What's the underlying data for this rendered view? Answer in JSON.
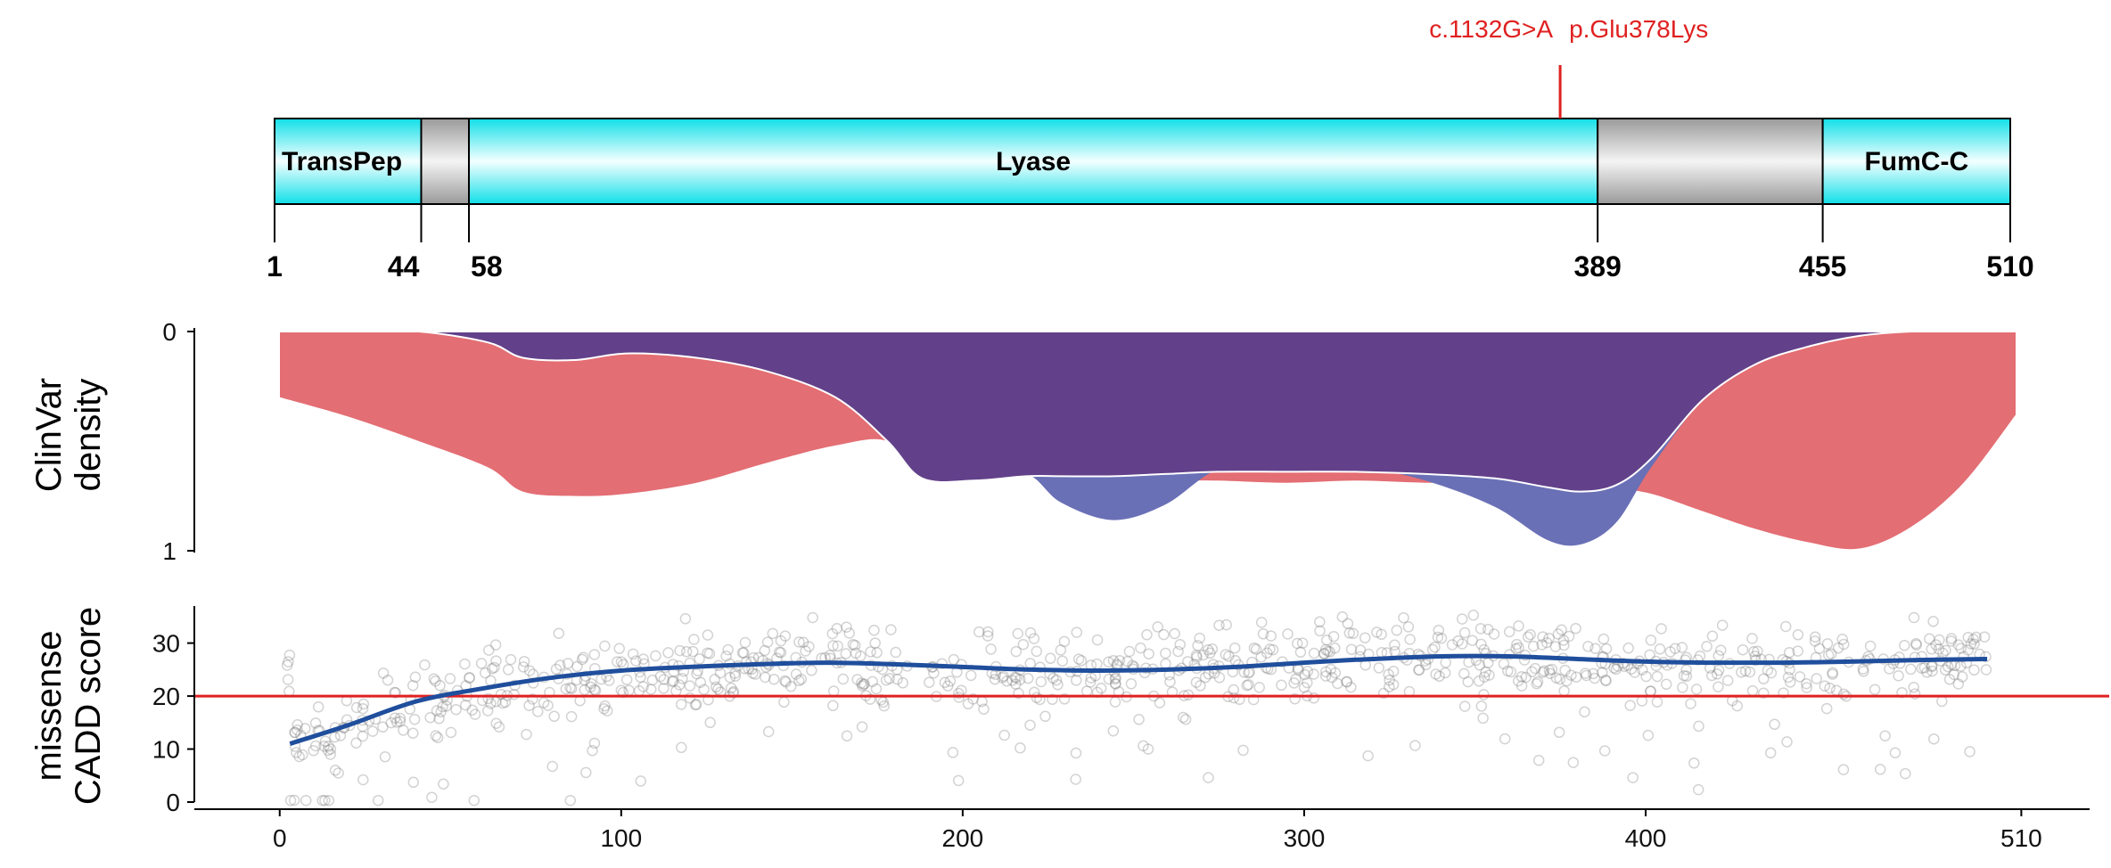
{
  "chart_data": [
    {
      "type": "domain-map",
      "protein_length": 510,
      "variant": {
        "position": 378,
        "label_cdna": "c.1132G>A",
        "label_protein": "p.Glu378Lys",
        "color": "#e02020"
      },
      "domains": [
        {
          "label": "TransPep",
          "start": 1,
          "end": 44,
          "color": "#22e8ee"
        },
        {
          "label": "",
          "start": 44,
          "end": 58,
          "color": "#a8a8a8"
        },
        {
          "label": "Lyase",
          "start": 58,
          "end": 389,
          "color": "#22e8ee"
        },
        {
          "label": "",
          "start": 389,
          "end": 455,
          "color": "#a8a8a8"
        },
        {
          "label": "FumC-C",
          "start": 455,
          "end": 510,
          "color": "#22e8ee"
        }
      ],
      "position_ticks": [
        "1",
        "44",
        "58",
        "389",
        "455",
        "510"
      ]
    },
    {
      "type": "area",
      "ylabel_line1": "ClinVar",
      "ylabel_line2": "density",
      "yticks": [
        "0",
        "1"
      ],
      "ylim": [
        0,
        1
      ],
      "y_inverted": true,
      "x": [
        0,
        20,
        40,
        60,
        70,
        85,
        100,
        120,
        140,
        160,
        175,
        185,
        200,
        215,
        225,
        240,
        255,
        270,
        290,
        310,
        330,
        350,
        365,
        375,
        385,
        395,
        410,
        425,
        440,
        455,
        470,
        485,
        500
      ],
      "series": [
        {
          "id": "benign",
          "color": "#e36e74",
          "values": [
            0.3,
            0.39,
            0.5,
            0.62,
            0.73,
            0.75,
            0.74,
            0.69,
            0.6,
            0.52,
            0.5,
            0.66,
            0.61,
            0.53,
            0.69,
            0.68,
            0.68,
            0.68,
            0.69,
            0.68,
            0.69,
            0.69,
            0.72,
            0.73,
            0.72,
            0.74,
            0.82,
            0.9,
            0.96,
            0.99,
            0.89,
            0.69,
            0.38
          ]
        },
        {
          "id": "pathogenic",
          "color": "#62418a",
          "values": [
            0.0,
            0.0,
            0.0,
            0.05,
            0.12,
            0.13,
            0.1,
            0.12,
            0.18,
            0.3,
            0.5,
            0.67,
            0.68,
            0.66,
            0.66,
            0.66,
            0.65,
            0.64,
            0.64,
            0.64,
            0.65,
            0.67,
            0.71,
            0.73,
            0.7,
            0.58,
            0.31,
            0.15,
            0.07,
            0.02,
            0.0,
            0.0,
            0.0
          ]
        },
        {
          "id": "pathogenic-lower",
          "color": "#6a70b6",
          "values": [
            0.0,
            0.0,
            0.0,
            0.05,
            0.12,
            0.13,
            0.1,
            0.12,
            0.18,
            0.3,
            0.5,
            0.67,
            0.67,
            0.65,
            0.78,
            0.86,
            0.79,
            0.63,
            0.56,
            0.61,
            0.68,
            0.8,
            0.95,
            0.97,
            0.87,
            0.62,
            0.31,
            0.15,
            0.07,
            0.02,
            0.0,
            0.0,
            0.0
          ]
        }
      ]
    },
    {
      "type": "scatter",
      "ylabel_line1": "missense",
      "ylabel_line2": "CADD score",
      "yticks": [
        "0",
        "10",
        "20",
        "30"
      ],
      "xticks": [
        "0",
        "100",
        "200",
        "300",
        "400",
        "510"
      ],
      "xlim": [
        -25,
        530
      ],
      "ylim": [
        0,
        37
      ],
      "threshold": {
        "y": 20,
        "color": "#e02020"
      },
      "trend": {
        "color": "#1f4e9c",
        "x": [
          3,
          20,
          40,
          60,
          80,
          100,
          120,
          140,
          160,
          180,
          200,
          220,
          240,
          260,
          280,
          300,
          320,
          340,
          360,
          380,
          400,
          420,
          440,
          460,
          480,
          500
        ],
        "y": [
          11,
          14.5,
          19,
          21.5,
          23.5,
          24.8,
          25.5,
          26,
          26.3,
          26,
          25.5,
          25,
          24.8,
          25,
          25.5,
          26.3,
          27,
          27.5,
          27.5,
          27,
          26.5,
          26.3,
          26.3,
          26.5,
          26.8,
          27
        ]
      },
      "point_color": "#808080"
    }
  ]
}
